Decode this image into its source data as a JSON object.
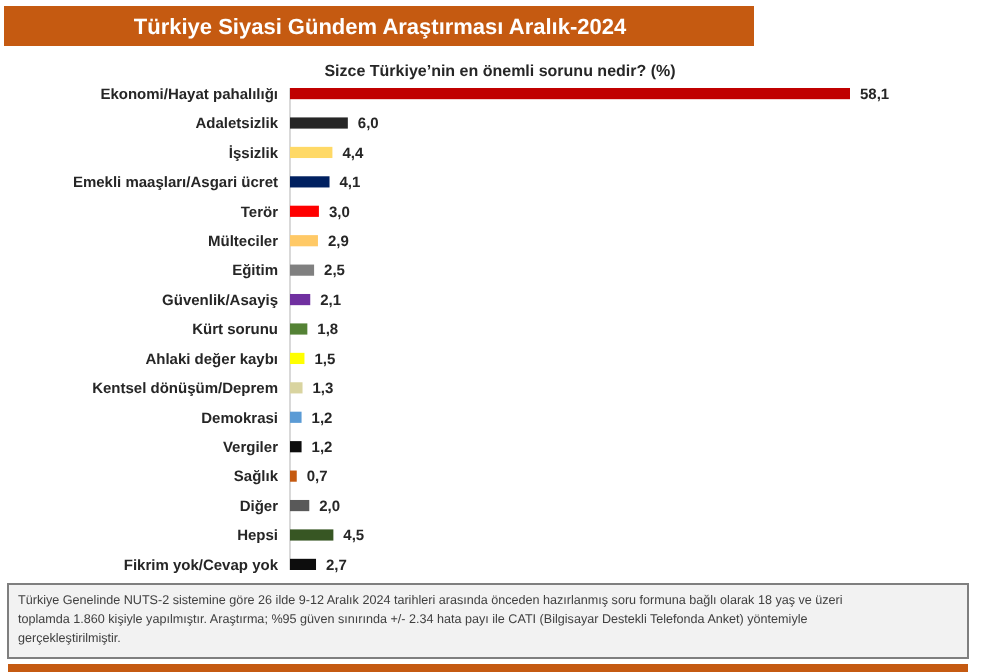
{
  "chart_data": {
    "type": "bar",
    "orientation": "horizontal",
    "title": "Türkiye Siyasi Gündem Araştırması Aralık-2024",
    "subtitle": "Sizce Türkiye’nin en önemli sorunu nedir? (%)",
    "categories": [
      "Ekonomi/Hayat pahalılığı",
      "Adaletsizlik",
      "İşsizlik",
      "Emekli maaşları/Asgari ücret",
      "Terör",
      "Mülteciler",
      "Eğitim",
      "Güvenlik/Asayiş",
      "Kürt sorunu",
      "Ahlaki değer kaybı",
      "Kentsel dönüşüm/Deprem",
      "Demokrasi",
      "Vergiler",
      "Sağlık",
      "Diğer",
      "Hepsi",
      "Fikrim yok/Cevap yok"
    ],
    "values": [
      58.1,
      6.0,
      4.4,
      4.1,
      3.0,
      2.9,
      2.5,
      2.1,
      1.8,
      1.5,
      1.3,
      1.2,
      1.2,
      0.7,
      2.0,
      4.5,
      2.7
    ],
    "value_labels": [
      "58,1",
      "6,0",
      "4,4",
      "4,1",
      "3,0",
      "2,9",
      "2,5",
      "2,1",
      "1,8",
      "1,5",
      "1,3",
      "1,2",
      "1,2",
      "0,7",
      "2,0",
      "4,5",
      "2,7"
    ],
    "colors": [
      "#c00000",
      "#262626",
      "#ffd966",
      "#002060",
      "#ff0000",
      "#ffc966",
      "#808080",
      "#7030a0",
      "#548235",
      "#ffff00",
      "#d9d4a0",
      "#5b9bd5",
      "#0d0d0d",
      "#c55a11",
      "#595959",
      "#375623",
      "#0d0d0d"
    ],
    "annotations": [
      "Türkiye Genelinde NUTS-2 sistemine göre 26 ilde 9-12 Aralık 2024 tarihleri arasında önceden hazırlanmış soru formuna bağlı olarak 18 yaş ve üzeri toplamda 1.860 kişiyle yapılmıştır. Araştırma; %95 güven sınırında +/- 2.34 hata payı ile CATI (Bilgisayar Destekli Telefonda Anket) yöntemiyle gerçekleştirilmiştir."
    ]
  }
}
